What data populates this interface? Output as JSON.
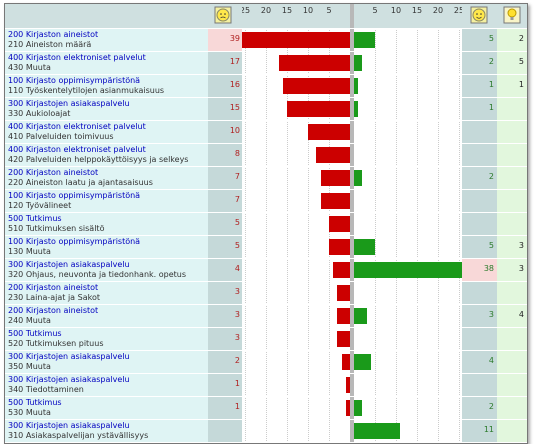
{
  "axis": {
    "limit": 25,
    "negative_ticks": [
      25,
      20,
      15,
      10,
      5
    ],
    "positive_ticks": [
      5,
      10,
      15,
      20,
      25
    ]
  },
  "rows": [
    {
      "category": "200 Kirjaston aineistot",
      "subcategory": "210 Aineiston määrä",
      "negative": 39,
      "positive": 5,
      "ideas": 2
    },
    {
      "category": "400 Kirjaston elektroniset palvelut",
      "subcategory": "430 Muuta",
      "negative": 17,
      "positive": 2,
      "ideas": 5
    },
    {
      "category": "100 Kirjasto oppimisympäristönä",
      "subcategory": "110 Työskentelytilojen asianmukaisuus",
      "negative": 16,
      "positive": 1,
      "ideas": 1
    },
    {
      "category": "300 Kirjastojen asiakaspalvelu",
      "subcategory": "330 Aukioloajat",
      "negative": 15,
      "positive": 1,
      "ideas": null
    },
    {
      "category": "400 Kirjaston elektroniset palvelut",
      "subcategory": "410 Palveluiden toimivuus",
      "negative": 10,
      "positive": null,
      "ideas": null
    },
    {
      "category": "400 Kirjaston elektroniset palvelut",
      "subcategory": "420 Palveluiden helppokäyttöisyys ja selkeys",
      "negative": 8,
      "positive": null,
      "ideas": null
    },
    {
      "category": "200 Kirjaston aineistot",
      "subcategory": "220 Aineiston laatu ja ajantasaisuus",
      "negative": 7,
      "positive": 2,
      "ideas": null
    },
    {
      "category": "100 Kirjasto oppimisympäristönä",
      "subcategory": "120 Työvälineet",
      "negative": 7,
      "positive": null,
      "ideas": null
    },
    {
      "category": "500 Tutkimus",
      "subcategory": "510 Tutkimuksen sisältö",
      "negative": 5,
      "positive": null,
      "ideas": null
    },
    {
      "category": "100 Kirjasto oppimisympäristönä",
      "subcategory": "130 Muuta",
      "negative": 5,
      "positive": 5,
      "ideas": 3
    },
    {
      "category": "300 Kirjastojen asiakaspalvelu",
      "subcategory": "320 Ohjaus, neuvonta ja tiedonhank. opetus",
      "negative": 4,
      "positive": 38,
      "ideas": 3
    },
    {
      "category": "200 Kirjaston aineistot",
      "subcategory": "230 Laina-ajat ja Sakot",
      "negative": 3,
      "positive": null,
      "ideas": null
    },
    {
      "category": "200 Kirjaston aineistot",
      "subcategory": "240 Muuta",
      "negative": 3,
      "positive": 3,
      "ideas": 4
    },
    {
      "category": "500 Tutkimus",
      "subcategory": "520 Tutkimuksen pituus",
      "negative": 3,
      "positive": null,
      "ideas": null
    },
    {
      "category": "300 Kirjastojen asiakaspalvelu",
      "subcategory": "350 Muuta",
      "negative": 2,
      "positive": 4,
      "ideas": null
    },
    {
      "category": "300 Kirjastojen asiakaspalvelu",
      "subcategory": "340 Tiedottaminen",
      "negative": 1,
      "positive": null,
      "ideas": null
    },
    {
      "category": "500 Tutkimus",
      "subcategory": "530 Muuta",
      "negative": 1,
      "positive": 2,
      "ideas": null
    },
    {
      "category": "300 Kirjastojen asiakaspalvelu",
      "subcategory": "310 Asiakaspalvelijan ystävällisyys",
      "negative": null,
      "positive": 11,
      "ideas": null
    }
  ]
}
